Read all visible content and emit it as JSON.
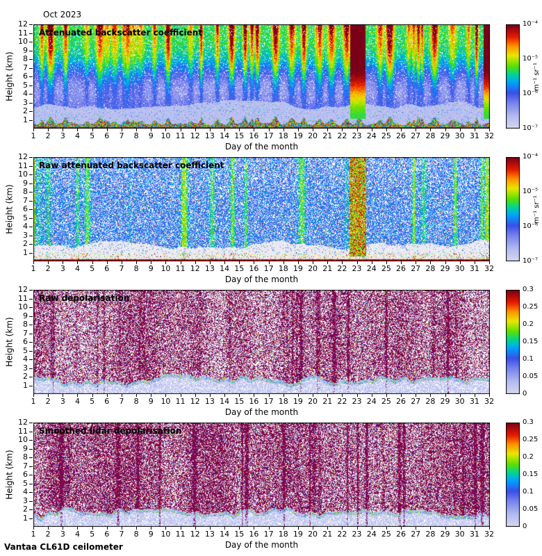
{
  "header": {
    "date_label": "Oct 2023"
  },
  "footer": {
    "instrument_label": "Vantaa CL61D ceilometer"
  },
  "chart_data": [
    {
      "type": "heatmap",
      "style": "attenuated_backscatter",
      "title": "Attenuated backscatter coefficient",
      "xlabel": "Day of the month",
      "ylabel": "Height (km)",
      "xlim": [
        1,
        32
      ],
      "ylim": [
        0,
        12
      ],
      "x_ticks": [
        1,
        2,
        3,
        4,
        5,
        6,
        7,
        8,
        9,
        10,
        11,
        12,
        13,
        14,
        15,
        16,
        17,
        18,
        19,
        20,
        21,
        22,
        23,
        24,
        25,
        26,
        27,
        28,
        29,
        30,
        31,
        32
      ],
      "y_ticks": [
        1,
        2,
        3,
        4,
        5,
        6,
        7,
        8,
        9,
        10,
        11,
        12
      ],
      "colormap": "jet",
      "colorbar": {
        "scale": "log",
        "range": [
          "1e-7",
          "1e-4"
        ],
        "ticks": [
          "10⁻⁴",
          "10⁻⁵",
          "10⁻⁶",
          "10⁻⁷"
        ],
        "unit": "m⁻¹ sr⁻¹"
      },
      "features": [
        "daily plumes with yellow-red tops over green noise region aloft",
        "strong red high-backscatter column on day 23 from 12 km down to ~1.5 km",
        "red backscatter column near day 32",
        "pale low-signal band between ~1 and 3 km",
        "colorful high-backscatter aerosol layer below ~1 km"
      ]
    },
    {
      "type": "heatmap",
      "style": "raw_attenuated_backscatter",
      "title": "Raw attenuated backscatter coefficient",
      "xlabel": "Day of the month",
      "ylabel": "Height (km)",
      "xlim": [
        1,
        32
      ],
      "ylim": [
        0,
        12
      ],
      "x_ticks": [
        1,
        2,
        3,
        4,
        5,
        6,
        7,
        8,
        9,
        10,
        11,
        12,
        13,
        14,
        15,
        16,
        17,
        18,
        19,
        20,
        21,
        22,
        23,
        24,
        25,
        26,
        27,
        28,
        29,
        30,
        31,
        32
      ],
      "y_ticks": [
        1,
        2,
        3,
        4,
        5,
        6,
        7,
        8,
        9,
        10,
        11,
        12
      ],
      "colormap": "jet",
      "colorbar": {
        "scale": "log",
        "range": [
          "1e-7",
          "1e-4"
        ],
        "ticks": [
          "10⁻⁴",
          "10⁻⁵",
          "10⁻⁶",
          "10⁻⁷"
        ],
        "unit": "m⁻¹ sr⁻¹"
      },
      "features": [
        "noisy blue speckle field over the full height range",
        "green and red streak columns on several days",
        "strong orange-red noisy column around day 23",
        "white low-signal region below ~2 km with dark red surface line"
      ]
    },
    {
      "type": "heatmap",
      "style": "raw_depolarisation",
      "title": "Raw depolarisation",
      "xlabel": "Day of the month",
      "ylabel": "Height (km)",
      "xlim": [
        1,
        32
      ],
      "ylim": [
        0,
        12
      ],
      "x_ticks": [
        1,
        2,
        3,
        4,
        5,
        6,
        7,
        8,
        9,
        10,
        11,
        12,
        13,
        14,
        15,
        16,
        17,
        18,
        19,
        20,
        21,
        22,
        23,
        24,
        25,
        26,
        27,
        28,
        29,
        30,
        31,
        32
      ],
      "y_ticks": [
        1,
        2,
        3,
        4,
        5,
        6,
        7,
        8,
        9,
        10,
        11,
        12
      ],
      "colormap": "jet",
      "colorbar": {
        "scale": "linear",
        "range": [
          0,
          0.3
        ],
        "ticks": [
          "0.3",
          "0.25",
          "0.2",
          "0.15",
          "0.1",
          "0.05",
          "0"
        ],
        "unit": ""
      },
      "features": [
        "dense dark magenta high-depolarisation noise speckle aloft",
        "low-depolarisation pale blue boundary layer below ~1-2 km",
        "colorful specks at the boundary layer top",
        "denser vertical streaks on some days"
      ]
    },
    {
      "type": "heatmap",
      "style": "smoothed_depolarisation",
      "title": "Smoothed lidar depolarisation",
      "xlabel": "Day of the month",
      "ylabel": "Height (km)",
      "xlim": [
        1,
        32
      ],
      "ylim": [
        0,
        12
      ],
      "x_ticks": [
        1,
        2,
        3,
        4,
        5,
        6,
        7,
        8,
        9,
        10,
        11,
        12,
        13,
        14,
        15,
        16,
        17,
        18,
        19,
        20,
        21,
        22,
        23,
        24,
        25,
        26,
        27,
        28,
        29,
        30,
        31,
        32
      ],
      "y_ticks": [
        1,
        2,
        3,
        4,
        5,
        6,
        7,
        8,
        9,
        10,
        11,
        12
      ],
      "colormap": "jet",
      "colorbar": {
        "scale": "linear",
        "range": [
          0,
          0.3
        ],
        "ticks": [
          "0.3",
          "0.25",
          "0.2",
          "0.15",
          "0.1",
          "0.05",
          "0"
        ],
        "unit": ""
      },
      "features": [
        "dark magenta depolarisation speckle aloft, denser than raw panel",
        "purple streaks reaching down to the surface on several days",
        "pale low-depolarisation boundary layer with colorful specks at its top"
      ]
    }
  ]
}
